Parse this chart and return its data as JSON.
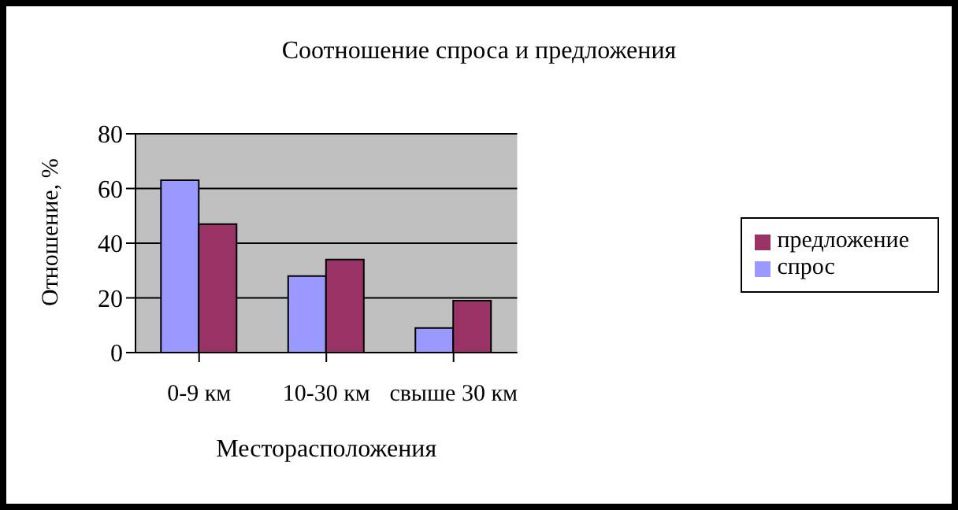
{
  "chart_data": {
    "type": "bar",
    "title": "Соотношение спроса и предложения",
    "xlabel": "Месторасположения",
    "ylabel": "Отношение, %",
    "categories": [
      "0-9 км",
      "10-30 км",
      "свыше 30 км"
    ],
    "series": [
      {
        "name": "спрос",
        "color": "#9999ff",
        "values": [
          63,
          28,
          9
        ]
      },
      {
        "name": "предложение",
        "color": "#993366",
        "values": [
          47,
          34,
          19
        ]
      }
    ],
    "ylim": [
      0,
      80
    ],
    "yticks": [
      0,
      20,
      40,
      60,
      80
    ],
    "grid": "y",
    "legend": "right"
  }
}
